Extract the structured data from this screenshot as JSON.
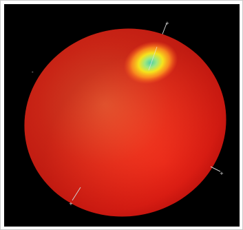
{
  "scene": {
    "background_color": "#000000",
    "object": "red-spheroid",
    "colors": {
      "body_highlight": "#ff6a3a",
      "body_mid": "#ef2a18",
      "body_shadow": "#b80d0a",
      "hotspot_outer": "#ff9a1e",
      "hotspot_mid": "#f6e31c",
      "hotspot_inner": "#9ee880",
      "hotspot_core": "#4ccfa6",
      "axis_line": "#cfcfcf"
    },
    "axis_ticks": [
      {
        "id": "top-right",
        "label": "+"
      },
      {
        "id": "left",
        "label": "-"
      },
      {
        "id": "right",
        "label": "+"
      },
      {
        "id": "bottom-left",
        "label": "+"
      }
    ]
  }
}
